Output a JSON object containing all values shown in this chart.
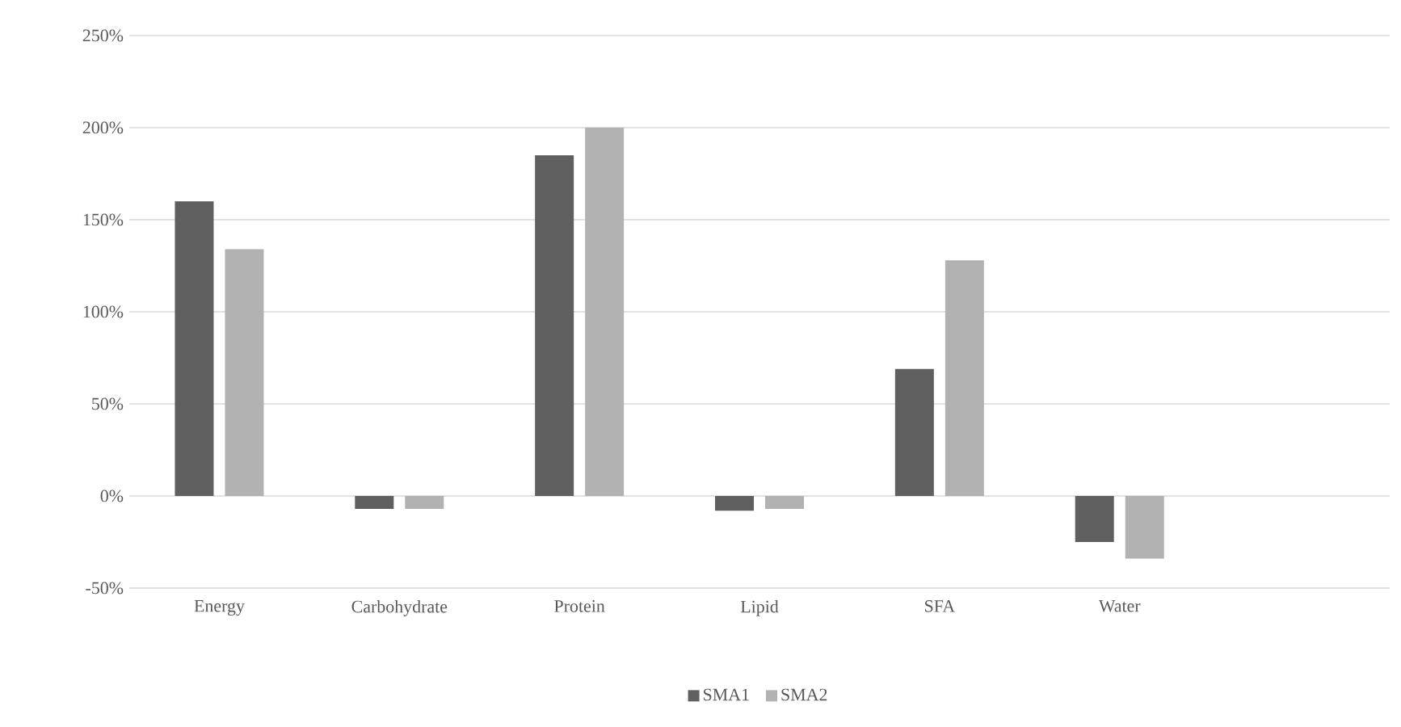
{
  "chart_data": {
    "type": "bar",
    "categories": [
      "Energy",
      "Carbohydrate",
      "Protein",
      "Lipid",
      "SFA",
      "Water",
      null
    ],
    "series": [
      {
        "name": "SMA1",
        "color": "#5f5f5f",
        "values": [
          160,
          -7,
          185,
          -8,
          69,
          -25,
          null
        ]
      },
      {
        "name": "SMA2",
        "color": "#b2b2b2",
        "values": [
          134,
          -7,
          200,
          -7,
          128,
          -34,
          null
        ]
      }
    ],
    "ylim": [
      -50,
      250
    ],
    "yticks": [
      {
        "value": -50,
        "label": "-50%"
      },
      {
        "value": 0,
        "label": "0%"
      },
      {
        "value": 50,
        "label": "50%"
      },
      {
        "value": 100,
        "label": "100%"
      },
      {
        "value": 150,
        "label": "150%"
      },
      {
        "value": 200,
        "label": "200%"
      },
      {
        "value": 250,
        "label": "250%"
      }
    ],
    "grid": "y",
    "legend": "bottom"
  }
}
